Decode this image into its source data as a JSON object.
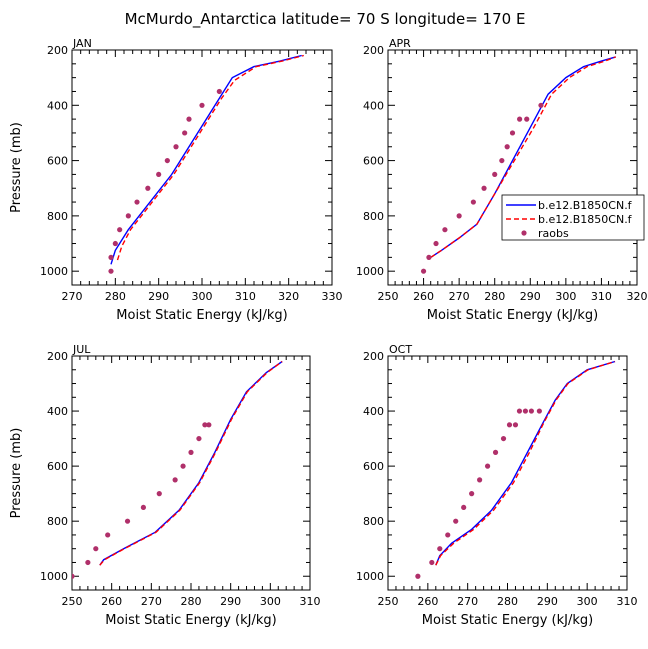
{
  "title": "McMurdo_Antarctica  latitude= 70 S longitude= 170 E",
  "colors": {
    "model1": "#0000ff",
    "model2": "#ff0000",
    "raobs": "#b0306a"
  },
  "chart_data": [
    {
      "type": "line",
      "panel_label": "JAN",
      "xlabel": "Moist Static Energy (kJ/kg)",
      "ylabel": "Pressure (mb)",
      "xlim": [
        270,
        330
      ],
      "ylim": [
        1050,
        200
      ],
      "xticks": [
        270,
        280,
        290,
        300,
        310,
        320,
        330
      ],
      "yticks": [
        200,
        400,
        600,
        800,
        1000
      ],
      "series": [
        {
          "name": "b.e12.B1850CN.f",
          "style": "solid",
          "color": "#0000ff",
          "x": [
            279.0,
            280.0,
            283.0,
            288.0,
            293.0,
            297.0,
            301.0,
            304.0,
            307.0,
            312.0,
            318.0,
            323.0
          ],
          "y": [
            975,
            925,
            850,
            750,
            650,
            550,
            450,
            375,
            300,
            260,
            240,
            220
          ]
        },
        {
          "name": "b.e12.B1850CN.f",
          "style": "dashed",
          "color": "#ff0000",
          "x": [
            280.5,
            281.5,
            283.5,
            288.5,
            293.5,
            297.5,
            301.5,
            304.5,
            307.5,
            312.5,
            318.5,
            323.5
          ],
          "y": [
            960,
            910,
            850,
            750,
            650,
            550,
            450,
            375,
            310,
            260,
            240,
            220
          ]
        },
        {
          "name": "raobs",
          "style": "markers",
          "color": "#b0306a",
          "x": [
            279,
            279,
            280,
            281,
            283,
            285,
            287.5,
            290,
            292,
            294,
            296,
            297,
            300,
            304
          ],
          "y": [
            1000,
            950,
            900,
            850,
            800,
            750,
            700,
            650,
            600,
            550,
            500,
            450,
            400,
            350
          ]
        }
      ]
    },
    {
      "type": "line",
      "panel_label": "APR",
      "xlabel": "Moist Static Energy (kJ/kg)",
      "ylabel": "",
      "xlim": [
        250,
        320
      ],
      "ylim": [
        1050,
        200
      ],
      "xticks": [
        250,
        260,
        270,
        280,
        290,
        300,
        310,
        320
      ],
      "yticks": [
        200,
        400,
        600,
        800,
        1000
      ],
      "legend_position": "right",
      "series": [
        {
          "name": "b.e12.B1850CN.f",
          "style": "solid",
          "color": "#0000ff",
          "x": [
            262,
            265,
            270,
            275,
            280,
            285,
            290,
            295,
            300,
            305,
            310,
            314
          ],
          "y": [
            950,
            925,
            880,
            830,
            720,
            600,
            480,
            360,
            300,
            260,
            240,
            225
          ]
        },
        {
          "name": "b.e12.B1850CN.f",
          "style": "dashed",
          "color": "#ff0000",
          "x": [
            262,
            265,
            270,
            275,
            280,
            285.5,
            291,
            296,
            301,
            306,
            311,
            314
          ],
          "y": [
            950,
            925,
            880,
            830,
            720,
            600,
            480,
            360,
            300,
            260,
            240,
            225
          ]
        },
        {
          "name": "raobs",
          "style": "markers",
          "color": "#b0306a",
          "x": [
            260,
            261.5,
            263.5,
            266,
            270,
            274,
            277,
            280,
            282,
            283.5,
            285,
            287,
            289,
            293
          ],
          "y": [
            1000,
            950,
            900,
            850,
            800,
            750,
            700,
            650,
            600,
            550,
            500,
            450,
            450,
            400
          ]
        }
      ]
    },
    {
      "type": "line",
      "panel_label": "JUL",
      "xlabel": "Moist Static Energy (kJ/kg)",
      "ylabel": "Pressure (mb)",
      "xlim": [
        250,
        310
      ],
      "ylim": [
        1050,
        200
      ],
      "xticks": [
        250,
        260,
        270,
        280,
        290,
        300,
        310
      ],
      "yticks": [
        200,
        400,
        600,
        800,
        1000
      ],
      "series": [
        {
          "name": "b.e12.B1850CN.f",
          "style": "solid",
          "color": "#0000ff",
          "x": [
            257,
            258,
            263,
            271,
            277,
            282,
            286,
            290,
            294,
            299,
            303
          ],
          "y": [
            960,
            940,
            900,
            840,
            760,
            660,
            550,
            430,
            330,
            260,
            220
          ]
        },
        {
          "name": "b.e12.B1850CN.f",
          "style": "dashed",
          "color": "#ff0000",
          "x": [
            257,
            258.2,
            263.2,
            271.2,
            277.2,
            282.2,
            286.2,
            290.2,
            294.2,
            299.2,
            303
          ],
          "y": [
            960,
            940,
            900,
            840,
            760,
            660,
            550,
            430,
            330,
            260,
            220
          ]
        },
        {
          "name": "raobs",
          "style": "markers",
          "color": "#b0306a",
          "x": [
            250,
            254,
            256,
            259,
            264,
            268,
            272,
            276,
            278,
            280,
            282,
            283.5,
            284.5
          ],
          "y": [
            1000,
            950,
            900,
            850,
            800,
            750,
            700,
            650,
            600,
            550,
            500,
            450,
            450
          ]
        }
      ]
    },
    {
      "type": "line",
      "panel_label": "OCT",
      "xlabel": "Moist Static Energy (kJ/kg)",
      "ylabel": "",
      "xlim": [
        250,
        310
      ],
      "ylim": [
        1050,
        200
      ],
      "xticks": [
        250,
        260,
        270,
        280,
        290,
        300,
        310
      ],
      "yticks": [
        200,
        400,
        600,
        800,
        1000
      ],
      "series": [
        {
          "name": "b.e12.B1850CN.f",
          "style": "solid",
          "color": "#0000ff",
          "x": [
            262,
            263,
            266,
            271,
            276,
            281,
            285,
            289,
            292,
            295,
            300,
            307
          ],
          "y": [
            960,
            925,
            880,
            830,
            760,
            660,
            550,
            440,
            360,
            300,
            250,
            220
          ]
        },
        {
          "name": "b.e12.B1850CN.f",
          "style": "dashed",
          "color": "#ff0000",
          "x": [
            262,
            263.2,
            266.5,
            271.5,
            276.5,
            281.5,
            285.5,
            289.2,
            292.2,
            295.2,
            300.2,
            307
          ],
          "y": [
            960,
            925,
            880,
            830,
            760,
            660,
            550,
            440,
            360,
            300,
            250,
            220
          ]
        },
        {
          "name": "raobs",
          "style": "markers",
          "color": "#b0306a",
          "x": [
            257.5,
            261,
            263,
            265,
            267,
            269,
            271,
            273,
            275,
            277,
            279,
            280.5,
            282,
            283,
            284.5,
            286,
            288
          ],
          "y": [
            1000,
            950,
            900,
            850,
            800,
            750,
            700,
            650,
            600,
            550,
            500,
            450,
            450,
            400,
            400,
            400,
            400
          ]
        }
      ]
    }
  ]
}
